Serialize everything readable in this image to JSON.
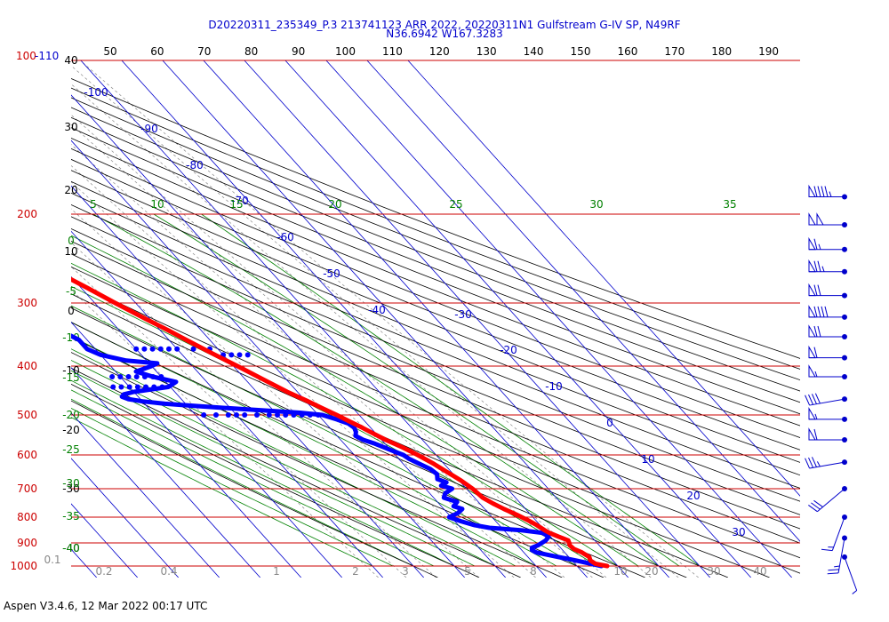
{
  "header": {
    "line1": "D20220311_235349_P.3 213741123 ARR 2022, 20220311N1 Gulfstream G-IV SP, N49RF",
    "line2": "N36.6942 W167.3283"
  },
  "footer": {
    "text": "Aspen V3.4.6, 12 Mar 2022  00:17 UTC"
  },
  "colors": {
    "temperature": "#ff0000",
    "dewpoint": "#0000ff",
    "isobar": "#cc0000",
    "isotherm": "#0000cc",
    "dry_adiabat": "#000000",
    "moist_adiabat": "#008000",
    "mixing_ratio": "#888888"
  },
  "chart_data": {
    "type": "skew-t",
    "top_axis_ticks": [
      "50",
      "60",
      "70",
      "80",
      "90",
      "100",
      "110",
      "120",
      "130",
      "140",
      "150",
      "160",
      "170",
      "180",
      "190"
    ],
    "pressure_levels": [
      100,
      200,
      300,
      400,
      500,
      600,
      700,
      800,
      900,
      1000
    ],
    "pressure_labels": [
      "100-110",
      "200",
      "300",
      "400",
      "500",
      "600",
      "700",
      "800",
      "900",
      "1000"
    ],
    "isotherm_labels": [
      "-100",
      "-90",
      "-80",
      "-70",
      "-60",
      "-50",
      "-40",
      "-30",
      "-20",
      "-10",
      "0",
      "10",
      "20",
      "30"
    ],
    "left_temp_labels": [
      "40",
      "30",
      "20",
      "10",
      "0",
      "-10",
      "-20",
      "-30",
      "-40"
    ],
    "moist_adiabat_top_labels": [
      "5",
      "10",
      "15",
      "20",
      "25",
      "30",
      "35"
    ],
    "moist_adiabat_left_labels": [
      "0",
      "-5",
      "-10",
      "-15",
      "-20",
      "-25",
      "-30",
      "-35",
      "-40"
    ],
    "mixing_ratio_labels": [
      "0.1",
      "0.2",
      "0.4",
      "1",
      "2",
      "3",
      "5",
      "8",
      "10",
      "20",
      "30",
      "40"
    ],
    "temperature": {
      "p": [
        1000,
        990,
        975,
        960,
        940,
        925,
        910,
        900,
        890,
        875,
        860,
        850,
        830,
        810,
        790,
        770,
        750,
        730,
        700,
        675,
        650,
        625,
        600,
        580,
        560,
        545,
        530,
        515,
        500,
        485,
        470,
        450,
        430,
        400,
        380,
        360,
        340,
        320,
        300,
        280,
        260,
        245,
        235,
        225,
        215,
        205,
        195,
        185,
        178
      ],
      "t": [
        17.4,
        15.0,
        14.5,
        15.0,
        14.2,
        13.0,
        12.8,
        13.2,
        13.5,
        12.0,
        10.6,
        10.0,
        9.2,
        8.0,
        6.5,
        4.7,
        3.2,
        2.0,
        1.5,
        0.5,
        -1.0,
        -2.5,
        -4.5,
        -6.5,
        -9.0,
        -10.5,
        -12.0,
        -13.8,
        -15.5,
        -17.5,
        -19.5,
        -22.5,
        -25.0,
        -29.0,
        -32.0,
        -35.0,
        -38.0,
        -41.5,
        -45.0,
        -48.5,
        -52.5,
        -55.0,
        -57.0,
        -58.8,
        -60.0,
        -60.2,
        -59.0,
        -57.0,
        -55.5
      ]
    },
    "dewpoint": {
      "p": [
        1000,
        985,
        975,
        960,
        940,
        930,
        920,
        910,
        900,
        890,
        875,
        860,
        850,
        840,
        830,
        815,
        800,
        785,
        770,
        760,
        745,
        730,
        715,
        700,
        690,
        680,
        670,
        655,
        640,
        625,
        610,
        600,
        590,
        580,
        570,
        560,
        550,
        540,
        530,
        520,
        510,
        500,
        495,
        490,
        485,
        480,
        475,
        470,
        465,
        460,
        455,
        450,
        440,
        430,
        420,
        410,
        400,
        395,
        390,
        380,
        370,
        355,
        340,
        325,
        310,
        300,
        290,
        280,
        270,
        262,
        255,
        250,
        245,
        240,
        235,
        230,
        225,
        220,
        215,
        210,
        205,
        200,
        197
      ],
      "td": [
        16.0,
        13.0,
        11.0,
        7.5,
        3.0,
        2.5,
        3.0,
        5.0,
        6.5,
        8.0,
        9.5,
        9.0,
        4.5,
        -3.0,
        -6.0,
        -8.5,
        -10.5,
        -7.5,
        -5.5,
        -7.0,
        -5.2,
        -7.5,
        -6.2,
        -3.5,
        -5.5,
        -3.5,
        -5.0,
        -4.0,
        -4.5,
        -6.0,
        -7.5,
        -8.0,
        -9.5,
        -11.0,
        -12.5,
        -14.5,
        -15.5,
        -14.5,
        -14.0,
        -14.5,
        -16.5,
        -19.0,
        -24.0,
        -32.0,
        -40.0,
        -48.0,
        -55.0,
        -60.0,
        -63.0,
        -64.0,
        -63.0,
        -60.0,
        -50.5,
        -47.5,
        -52.0,
        -55.0,
        -50.0,
        -48.0,
        -55.0,
        -60.0,
        -62.0,
        -62.0,
        -64.5,
        -65.0,
        -68.5,
        -70.0,
        -69.0,
        -67.5,
        -68.0,
        -70.0,
        -74.0,
        -80.0,
        -85.0,
        -88.0,
        -91.0,
        -92.5,
        -93.0,
        -92.5,
        -91.0,
        -89.5,
        -88.0,
        -86.0,
        -85.0
      ]
    },
    "dewpoint_dropouts": {
      "p": [
        500,
        500,
        500,
        500,
        500,
        500,
        500,
        500,
        500,
        500,
        500,
        500,
        500,
        420,
        420,
        420,
        420,
        420,
        420,
        420,
        440,
        440,
        440,
        440,
        440,
        440,
        440,
        370,
        370,
        370,
        370,
        370,
        370,
        370,
        370,
        380,
        380,
        380,
        380
      ],
      "td": [
        -48,
        -45,
        -42,
        -40,
        -38,
        -35,
        -32,
        -30,
        -28,
        -26,
        -24,
        -22,
        -20,
        -62,
        -60,
        -58,
        -56,
        -54,
        -52,
        -50,
        -64,
        -62,
        -60,
        -58,
        -56,
        -54,
        -52,
        -50,
        -48,
        -46,
        -44,
        -42,
        -40,
        -36,
        -32,
        -30,
        -28,
        -26,
        -24
      ]
    },
    "wind_barbs": [
      {
        "p": 185,
        "dir": 270,
        "spd": 95
      },
      {
        "p": 210,
        "dir": 270,
        "spd": 100
      },
      {
        "p": 235,
        "dir": 270,
        "spd": 65
      },
      {
        "p": 260,
        "dir": 270,
        "spd": 75
      },
      {
        "p": 290,
        "dir": 270,
        "spd": 70
      },
      {
        "p": 320,
        "dir": 270,
        "spd": 90
      },
      {
        "p": 350,
        "dir": 270,
        "spd": 70
      },
      {
        "p": 385,
        "dir": 270,
        "spd": 60
      },
      {
        "p": 420,
        "dir": 270,
        "spd": 55
      },
      {
        "p": 465,
        "dir": 260,
        "spd": 40
      },
      {
        "p": 510,
        "dir": 270,
        "spd": 55
      },
      {
        "p": 560,
        "dir": 270,
        "spd": 60
      },
      {
        "p": 620,
        "dir": 260,
        "spd": 35
      },
      {
        "p": 700,
        "dir": 230,
        "spd": 30
      },
      {
        "p": 800,
        "dir": 200,
        "spd": 15
      },
      {
        "p": 880,
        "dir": 190,
        "spd": 25
      },
      {
        "p": 960,
        "dir": 160,
        "spd": 5
      }
    ]
  }
}
